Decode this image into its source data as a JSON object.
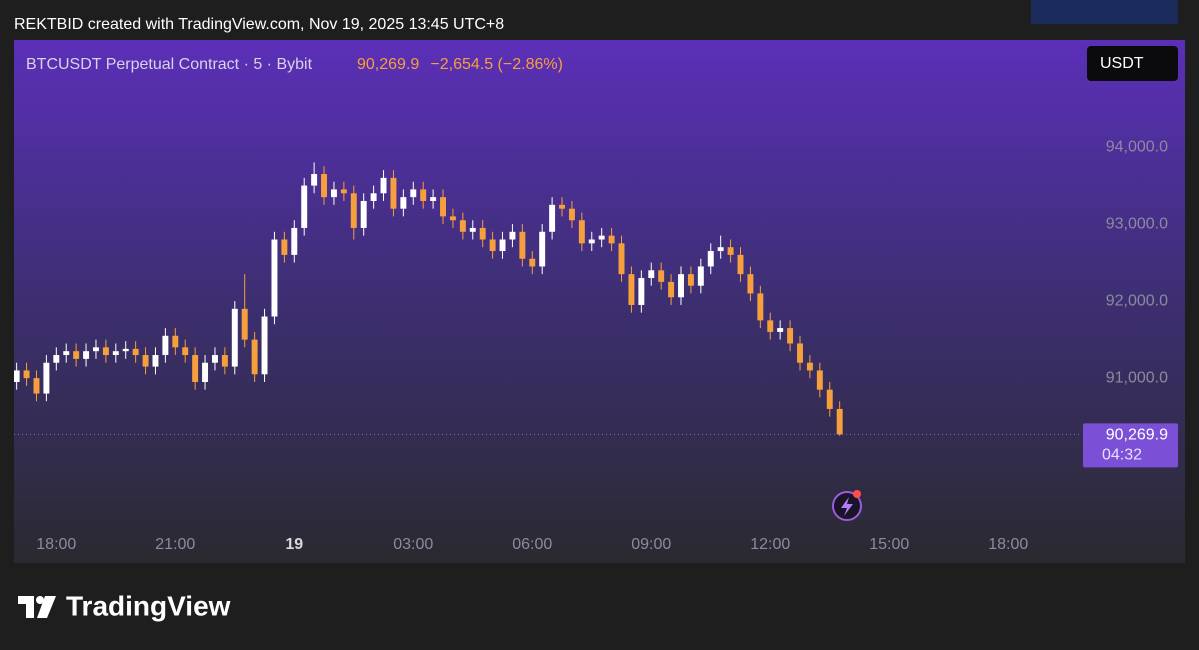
{
  "header": "REKTBID created with TradingView.com, Nov 19, 2025 13:45 UTC+8",
  "footer": {
    "logo": "TradingView"
  },
  "chart_data": {
    "type": "candlestick",
    "title": "BTCUSDT Perpetual Contract · 5 · Bybit",
    "last": {
      "value": 90269.9,
      "label": "90,269.9"
    },
    "change": "−2,654.5 (−2.86%)",
    "countdown": "04:32",
    "currency": "USDT",
    "high": [
      91200,
      91200,
      91100,
      91300,
      91400,
      91450,
      91450,
      91450,
      91500,
      91500,
      91450,
      91480,
      91480,
      91400,
      91400,
      91650,
      91650,
      91500,
      91400,
      91300,
      91400,
      91400,
      92000,
      92350,
      91600,
      91900,
      92900,
      92900,
      93050,
      93600,
      93800,
      93750,
      93550,
      93550,
      93500,
      93400,
      93500,
      93700,
      93700,
      93450,
      93550,
      93550,
      93450,
      93450,
      93200,
      93150,
      93050,
      93050,
      92900,
      92900,
      93000,
      93000,
      92650,
      93000,
      93350,
      93350,
      93300,
      93150,
      92900,
      92950,
      92950,
      92850,
      92450,
      92400,
      92500,
      92500,
      92350,
      92450,
      92450,
      92550,
      92750,
      92850,
      92800,
      92700,
      92450,
      92200,
      91850,
      91750,
      91750,
      91550,
      91300,
      91200,
      90950,
      90700
    ],
    "low": [
      90850,
      90900,
      90700,
      90700,
      91100,
      91200,
      91150,
      91150,
      91250,
      91200,
      91200,
      91250,
      91200,
      91050,
      91050,
      91200,
      91300,
      91200,
      90850,
      90850,
      91100,
      91050,
      91050,
      91400,
      90950,
      90950,
      91700,
      92500,
      92500,
      92850,
      93400,
      93250,
      93250,
      93300,
      92800,
      92850,
      93200,
      93300,
      93100,
      93100,
      93250,
      93200,
      93200,
      93000,
      92950,
      92800,
      92800,
      92700,
      92550,
      92550,
      92700,
      92450,
      92350,
      92350,
      92800,
      93100,
      92950,
      92650,
      92650,
      92700,
      92650,
      92250,
      91850,
      91850,
      92200,
      92150,
      91950,
      91950,
      92100,
      92100,
      92350,
      92550,
      92500,
      92250,
      92000,
      91650,
      91500,
      91500,
      91350,
      91100,
      91000,
      90750,
      90500,
      90252
    ],
    "up_color": "#ffffff",
    "down_color": "#f5a03c",
    "xlim": [
      1016,
      2621
    ],
    "xticks": [
      {
        "value": 1080,
        "label": "18:00"
      },
      {
        "value": 1260,
        "label": "21:00"
      },
      {
        "value": 1440,
        "label": "19"
      },
      {
        "value": 1620,
        "label": "03:00"
      },
      {
        "value": 1800,
        "label": "06:00"
      },
      {
        "value": 1980,
        "label": "09:00"
      },
      {
        "value": 2160,
        "label": "12:00"
      },
      {
        "value": 2340,
        "label": "15:00"
      },
      {
        "value": 2520,
        "label": "18:00"
      }
    ],
    "ylim": [
      88600,
      95390
    ],
    "yticks": [
      {
        "value": 91000,
        "label": "91,000.0"
      },
      {
        "value": 92000,
        "label": "92,000.0"
      },
      {
        "value": 93000,
        "label": "93,000.0"
      },
      {
        "value": 94000,
        "label": "94,000.0"
      }
    ],
    "x": [
      1020,
      1035,
      1050,
      1065,
      1080,
      1095,
      1110,
      1125,
      1140,
      1155,
      1170,
      1185,
      1200,
      1215,
      1230,
      1245,
      1260,
      1275,
      1290,
      1305,
      1320,
      1335,
      1350,
      1365,
      1380,
      1395,
      1410,
      1425,
      1440,
      1455,
      1470,
      1485,
      1500,
      1515,
      1530,
      1545,
      1560,
      1575,
      1590,
      1605,
      1620,
      1635,
      1650,
      1665,
      1680,
      1695,
      1710,
      1725,
      1740,
      1755,
      1770,
      1785,
      1800,
      1815,
      1830,
      1845,
      1860,
      1875,
      1890,
      1905,
      1920,
      1935,
      1950,
      1965,
      1980,
      1995,
      2010,
      2025,
      2040,
      2055,
      2070,
      2085,
      2100,
      2115,
      2130,
      2145,
      2160,
      2175,
      2190,
      2205,
      2220,
      2235,
      2250,
      2265
    ],
    "open": [
      90950,
      91100,
      91000,
      90800,
      91200,
      91300,
      91350,
      91250,
      91350,
      91400,
      91300,
      91350,
      91380,
      91300,
      91150,
      91300,
      91550,
      91400,
      91300,
      90950,
      91200,
      91300,
      91150,
      91900,
      91500,
      91050,
      91800,
      92800,
      92600,
      92950,
      93500,
      93650,
      93350,
      93450,
      93400,
      92950,
      93300,
      93400,
      93600,
      93200,
      93350,
      93450,
      93300,
      93350,
      93100,
      93050,
      92900,
      92950,
      92800,
      92650,
      92800,
      92900,
      92550,
      92450,
      92900,
      93250,
      93200,
      93050,
      92750,
      92800,
      92850,
      92750,
      92350,
      91950,
      92300,
      92400,
      92250,
      92050,
      92350,
      92200,
      92450,
      92650,
      92700,
      92600,
      92350,
      92100,
      91750,
      91600,
      91650,
      91450,
      91200,
      91100,
      90850,
      90600
    ],
    "close": [
      91100,
      91000,
      90800,
      91200,
      91300,
      91350,
      91250,
      91350,
      91400,
      91300,
      91350,
      91380,
      91300,
      91150,
      91300,
      91550,
      91400,
      91300,
      90950,
      91200,
      91300,
      91150,
      91900,
      91500,
      91050,
      91800,
      92800,
      92600,
      92950,
      93500,
      93650,
      93350,
      93450,
      93400,
      92950,
      93300,
      93400,
      93600,
      93200,
      93350,
      93450,
      93300,
      93350,
      93100,
      93050,
      92900,
      92950,
      92800,
      92650,
      92800,
      92900,
      92550,
      92450,
      92900,
      93250,
      93200,
      93050,
      92750,
      92800,
      92850,
      92750,
      92350,
      91950,
      92300,
      92400,
      92250,
      92050,
      92350,
      92200,
      92450,
      92650,
      92700,
      92600,
      92350,
      92100,
      91750,
      91600,
      91650,
      91450,
      91200,
      91100,
      90850,
      90600,
      90269.9
    ]
  }
}
